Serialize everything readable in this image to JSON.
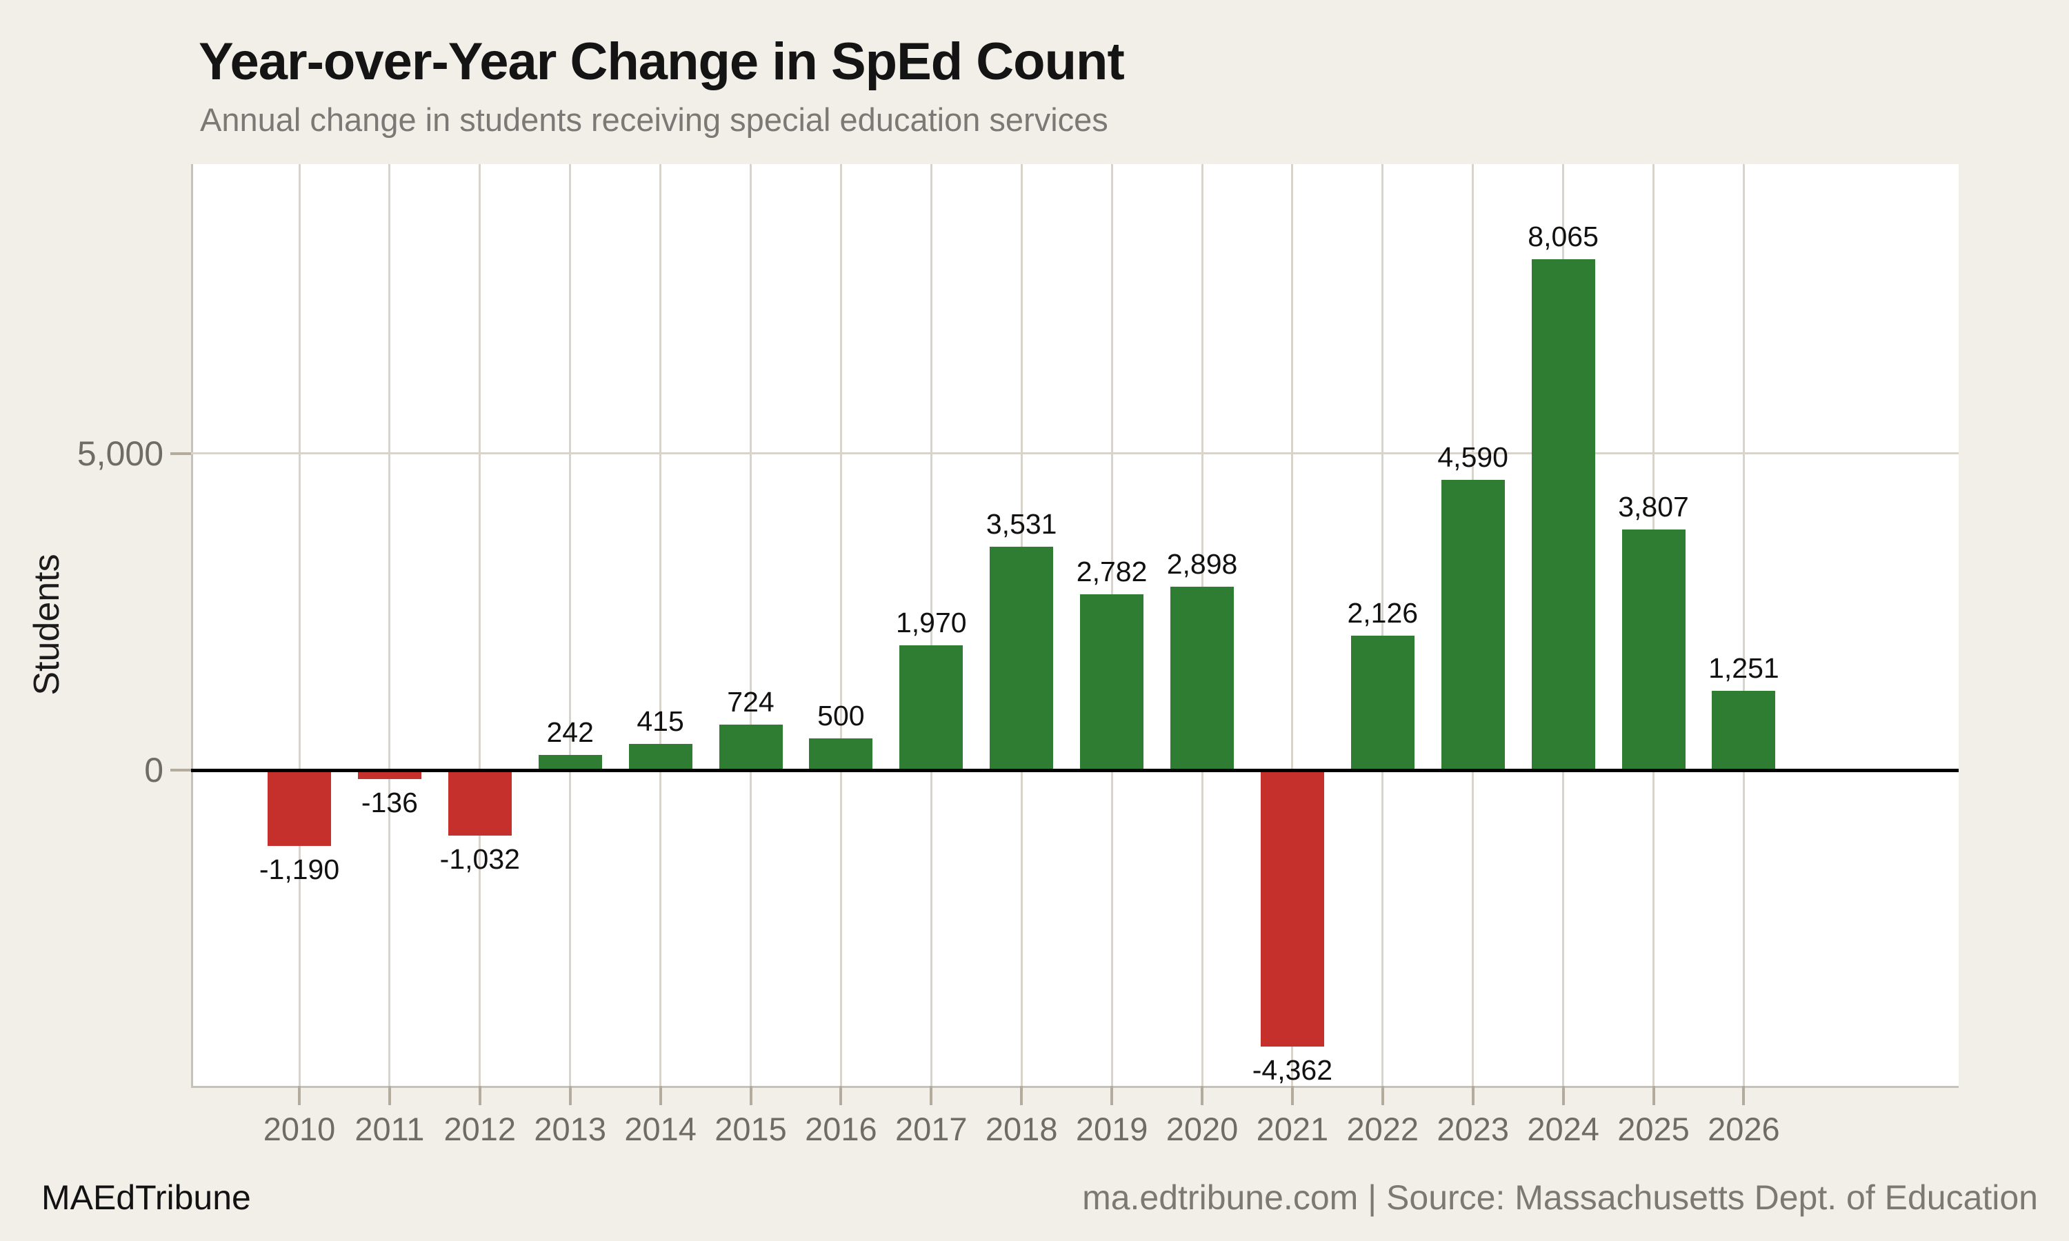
{
  "page": {
    "background": "#f2efe9"
  },
  "header": {
    "title": "Year-over-Year Change in SpEd Count",
    "subtitle": "Annual change in students receiving special education services"
  },
  "footer": {
    "brand": "MAEdTribune",
    "source": "ma.edtribune.com | Source: Massachusetts Dept. of Education"
  },
  "chart_data": {
    "type": "bar",
    "title": "Year-over-Year Change in SpEd Count",
    "subtitle": "Annual change in students receiving special education services",
    "xlabel": "",
    "ylabel": "Students",
    "categories": [
      "2010",
      "2011",
      "2012",
      "2013",
      "2014",
      "2015",
      "2016",
      "2017",
      "2018",
      "2019",
      "2020",
      "2021",
      "2022",
      "2023",
      "2024",
      "2025",
      "2026"
    ],
    "values": [
      -1190,
      -136,
      -1032,
      242,
      415,
      724,
      500,
      1970,
      3531,
      2782,
      2898,
      -4362,
      2126,
      4590,
      8065,
      3807,
      1251
    ],
    "bar_labels": [
      "-1,190",
      "-136",
      "-1,032",
      "242",
      "415",
      "724",
      "500",
      "1,970",
      "3,531",
      "2,782",
      "2,898",
      "-4,362",
      "2,126",
      "4,590",
      "8,065",
      "3,807",
      "1,251"
    ],
    "yticks": [
      {
        "value": 5000,
        "label": "5,000"
      },
      {
        "value": 0,
        "label": "0"
      }
    ],
    "ylim": [
      -4980,
      9570
    ],
    "grid": "on",
    "legend": "none",
    "colors": {
      "positive": "#2e7d32",
      "negative": "#c5302c",
      "gridline": "#d9d4cb",
      "zero_line": "#000000"
    }
  }
}
